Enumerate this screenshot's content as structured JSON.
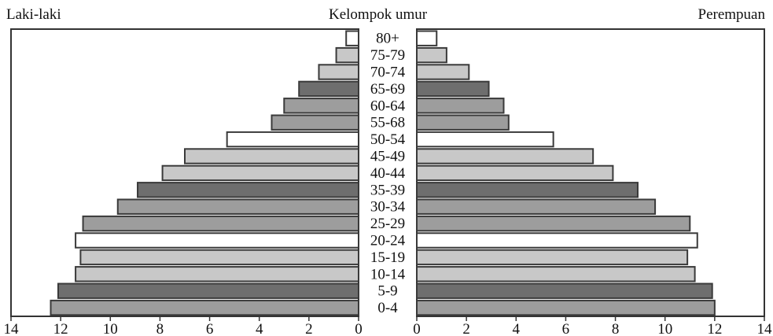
{
  "chart_data": {
    "type": "bar",
    "header_left": "Laki-laki",
    "header_center": "Kelompok umur",
    "header_right": "Perempuan",
    "categories": [
      "80+",
      "75-79",
      "70-74",
      "65-69",
      "60-64",
      "55-68",
      "50-54",
      "45-49",
      "40-44",
      "35-39",
      "30-34",
      "25-29",
      "20-24",
      "15-19",
      "10-14",
      "5-9",
      "0-4"
    ],
    "series": [
      {
        "name": "Laki-laki",
        "values": [
          0.5,
          0.9,
          1.6,
          2.4,
          3.0,
          3.5,
          5.3,
          7.0,
          7.9,
          8.9,
          9.7,
          11.1,
          11.4,
          11.2,
          11.4,
          12.1,
          12.4
        ]
      },
      {
        "name": "Perempuan",
        "values": [
          0.8,
          1.2,
          2.1,
          2.9,
          3.5,
          3.7,
          5.5,
          7.1,
          7.9,
          8.9,
          9.6,
          11.0,
          11.3,
          10.9,
          11.2,
          11.9,
          12.0
        ]
      }
    ],
    "bar_fills": [
      "#ffffff",
      "#c8c8c8",
      "#c8c8c8",
      "#6e6e6e",
      "#9d9d9d",
      "#9d9d9d",
      "#ffffff",
      "#c8c8c8",
      "#c8c8c8",
      "#6e6e6e",
      "#9d9d9d",
      "#9d9d9d",
      "#ffffff",
      "#c8c8c8",
      "#c8c8c8",
      "#6e6e6e",
      "#9d9d9d"
    ],
    "xlim": [
      0,
      14
    ],
    "ticks": [
      "14",
      "12",
      "10",
      "8",
      "6",
      "4",
      "2",
      "0"
    ],
    "ticks_right": [
      "0",
      "2",
      "4",
      "6",
      "8",
      "10",
      "12",
      "14"
    ]
  }
}
